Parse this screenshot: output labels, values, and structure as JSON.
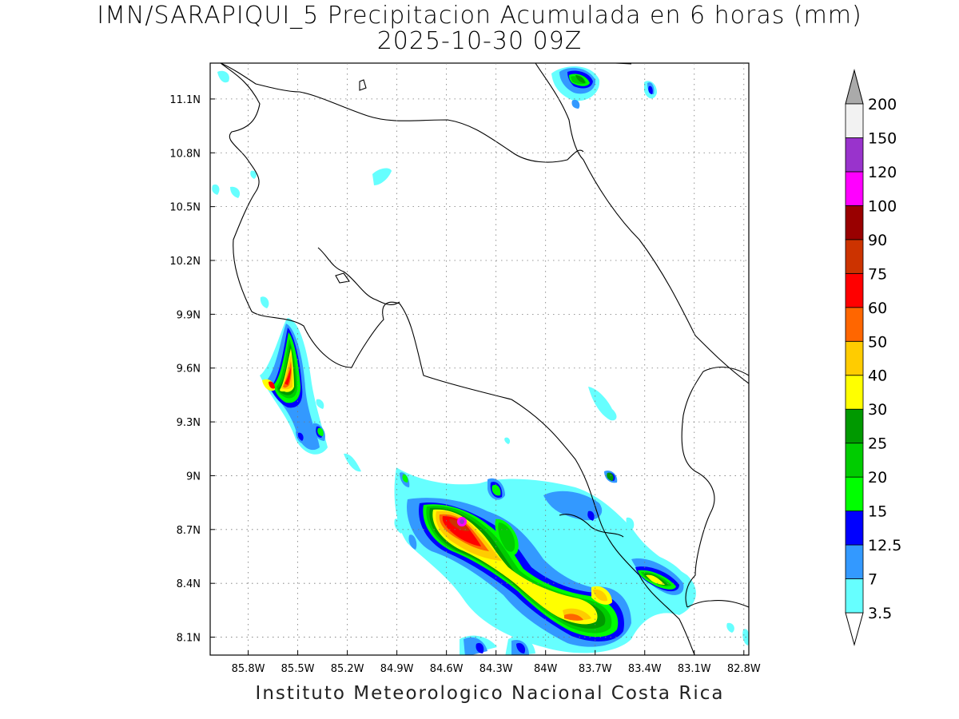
{
  "title": {
    "line1": "IMN/SARAPIQUI_5 Precipitacion Acumulada en 6 horas (mm)",
    "line2": "2025-10-30 09Z"
  },
  "footer": "Instituto Meteorologico Nacional Costa Rica",
  "map": {
    "lon_range": [
      -86.03,
      -82.77
    ],
    "lat_range": [
      8.0,
      11.3
    ],
    "x_ticks": [
      "85.8W",
      "85.5W",
      "85.2W",
      "84.9W",
      "84.6W",
      "84.3W",
      "84W",
      "83.7W",
      "83.4W",
      "83.1W",
      "82.8W"
    ],
    "y_ticks": [
      "11.1N",
      "10.8N",
      "10.5N",
      "10.2N",
      "9.9N",
      "9.6N",
      "9.3N",
      "9N",
      "8.7N",
      "8.4N",
      "8.1N"
    ],
    "grid": "dotted"
  },
  "colorbar": {
    "levels": [
      {
        "label": "3.5",
        "color": "#66ffff"
      },
      {
        "label": "7",
        "color": "#3399ff"
      },
      {
        "label": "12.5",
        "color": "#0000ff"
      },
      {
        "label": "15",
        "color": "#00ff00"
      },
      {
        "label": "20",
        "color": "#00cc00"
      },
      {
        "label": "25",
        "color": "#009900"
      },
      {
        "label": "30",
        "color": "#ffff00"
      },
      {
        "label": "40",
        "color": "#ffcc00"
      },
      {
        "label": "50",
        "color": "#ff6600"
      },
      {
        "label": "60",
        "color": "#ff0000"
      },
      {
        "label": "75",
        "color": "#cc3300"
      },
      {
        "label": "90",
        "color": "#990000"
      },
      {
        "label": "100",
        "color": "#ff00ff"
      },
      {
        "label": "120",
        "color": "#9933cc"
      },
      {
        "label": "150",
        "color": "#f2f2f2"
      },
      {
        "label": "200",
        "color": "#aaaaaa"
      }
    ]
  }
}
